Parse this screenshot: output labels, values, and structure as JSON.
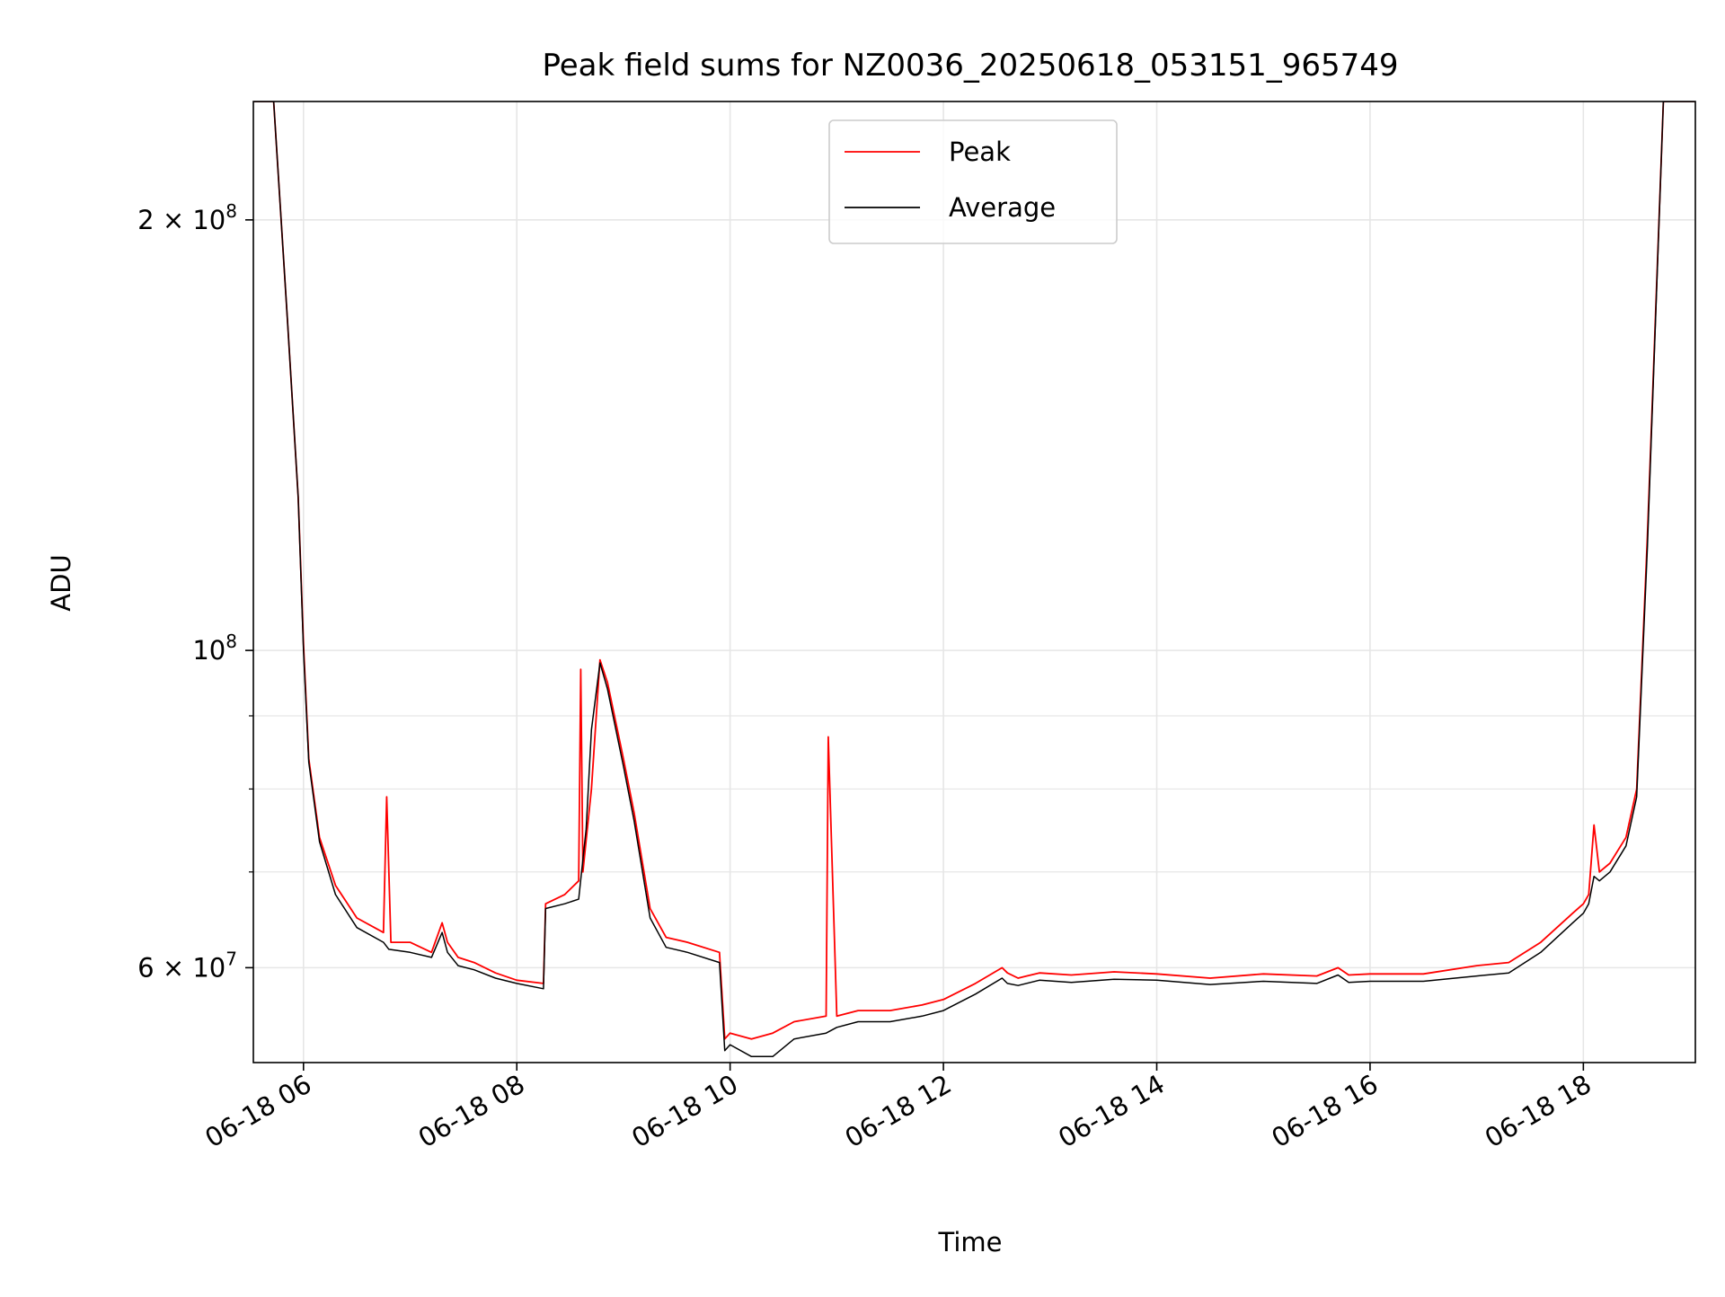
{
  "chart_data": {
    "type": "line",
    "title": "Peak field sums for NZ0036_20250618_053151_965749",
    "xlabel": "Time",
    "ylabel": "ADU",
    "yscale": "log",
    "ylim": [
      51500000,
      242000000
    ],
    "xlim_hours": [
      5.53,
      19.05
    ],
    "grid": true,
    "legend_position": "upper center",
    "x_ticks": [
      {
        "hour": 6,
        "label": "06-18 06"
      },
      {
        "hour": 8,
        "label": "06-18 08"
      },
      {
        "hour": 10,
        "label": "06-18 10"
      },
      {
        "hour": 12,
        "label": "06-18 12"
      },
      {
        "hour": 14,
        "label": "06-18 14"
      },
      {
        "hour": 16,
        "label": "06-18 16"
      },
      {
        "hour": 18,
        "label": "06-18 18"
      }
    ],
    "y_major_ticks": [
      {
        "value": 60000000,
        "label_mantissa": "6 × 10",
        "label_exp": "7"
      },
      {
        "value": 100000000,
        "label_mantissa": "10",
        "label_exp": "8"
      },
      {
        "value": 200000000,
        "label_mantissa": "2 × 10",
        "label_exp": "8"
      }
    ],
    "y_minor_ticks": [
      70000000,
      80000000,
      90000000
    ],
    "series": [
      {
        "name": "Peak",
        "color": "#ff0000",
        "hours": [
          5.53,
          5.72,
          5.85,
          5.95,
          6.0,
          6.05,
          6.15,
          6.3,
          6.5,
          6.75,
          6.78,
          6.82,
          7.0,
          7.2,
          7.3,
          7.35,
          7.45,
          7.6,
          7.8,
          8.0,
          8.25,
          8.27,
          8.45,
          8.58,
          8.6,
          8.62,
          8.7,
          8.78,
          8.85,
          9.0,
          9.1,
          9.25,
          9.4,
          9.6,
          9.9,
          9.95,
          10.0,
          10.2,
          10.4,
          10.6,
          10.9,
          10.92,
          11.0,
          11.2,
          11.5,
          11.8,
          12.0,
          12.3,
          12.55,
          12.6,
          12.7,
          12.9,
          13.2,
          13.6,
          14.0,
          14.5,
          15.0,
          15.5,
          15.7,
          15.8,
          16.0,
          16.5,
          17.0,
          17.3,
          17.6,
          17.9,
          18.0,
          18.05,
          18.1,
          18.15,
          18.25,
          18.4,
          18.5,
          18.6,
          18.75,
          19.05
        ],
        "values": [
          242000000,
          242000000,
          170000000,
          128000000,
          101000000,
          84000000,
          74000000,
          68500000,
          65000000,
          63500000,
          79000000,
          62500000,
          62500000,
          61500000,
          64500000,
          62500000,
          61000000,
          60500000,
          59500000,
          58800000,
          58500000,
          66500000,
          67500000,
          69000000,
          97000000,
          70000000,
          80000000,
          98500000,
          95000000,
          84000000,
          77000000,
          66000000,
          63000000,
          62500000,
          61500000,
          53500000,
          54000000,
          53500000,
          54000000,
          55000000,
          55500000,
          87000000,
          55500000,
          56000000,
          56000000,
          56500000,
          57000000,
          58500000,
          60000000,
          59500000,
          59000000,
          59500000,
          59300000,
          59600000,
          59400000,
          59000000,
          59400000,
          59200000,
          60000000,
          59300000,
          59400000,
          59400000,
          60200000,
          60500000,
          62500000,
          65500000,
          66500000,
          67500000,
          75500000,
          70000000,
          71000000,
          74000000,
          80000000,
          120000000,
          242000000,
          242000000
        ]
      },
      {
        "name": "Average",
        "color": "#000000",
        "hours": [
          5.53,
          5.72,
          5.85,
          5.95,
          6.0,
          6.05,
          6.15,
          6.3,
          6.5,
          6.75,
          6.8,
          7.0,
          7.2,
          7.3,
          7.35,
          7.45,
          7.6,
          7.8,
          8.0,
          8.25,
          8.27,
          8.45,
          8.58,
          8.65,
          8.7,
          8.78,
          8.85,
          9.0,
          9.1,
          9.25,
          9.4,
          9.6,
          9.9,
          9.95,
          10.0,
          10.2,
          10.4,
          10.6,
          10.9,
          11.0,
          11.2,
          11.5,
          11.8,
          12.0,
          12.3,
          12.55,
          12.6,
          12.7,
          12.9,
          13.2,
          13.6,
          14.0,
          14.5,
          15.0,
          15.5,
          15.7,
          15.8,
          16.0,
          16.5,
          17.0,
          17.3,
          17.6,
          17.9,
          18.0,
          18.05,
          18.1,
          18.15,
          18.25,
          18.4,
          18.5,
          18.6,
          18.75,
          19.05
        ],
        "values": [
          242000000,
          242000000,
          170000000,
          128000000,
          100000000,
          83500000,
          73500000,
          67500000,
          64000000,
          62500000,
          61800000,
          61500000,
          61000000,
          63500000,
          61500000,
          60200000,
          59800000,
          59000000,
          58500000,
          58000000,
          66000000,
          66500000,
          67000000,
          75000000,
          88000000,
          98000000,
          94000000,
          83000000,
          76000000,
          65000000,
          62000000,
          61500000,
          60500000,
          52500000,
          53000000,
          52000000,
          52000000,
          53500000,
          54000000,
          54500000,
          55000000,
          55000000,
          55500000,
          56000000,
          57500000,
          59000000,
          58500000,
          58300000,
          58800000,
          58600000,
          58900000,
          58800000,
          58400000,
          58700000,
          58500000,
          59300000,
          58600000,
          58700000,
          58700000,
          59200000,
          59500000,
          61500000,
          64500000,
          65500000,
          66500000,
          69500000,
          69000000,
          70000000,
          73000000,
          79000000,
          118000000,
          242000000,
          242000000
        ]
      }
    ]
  }
}
